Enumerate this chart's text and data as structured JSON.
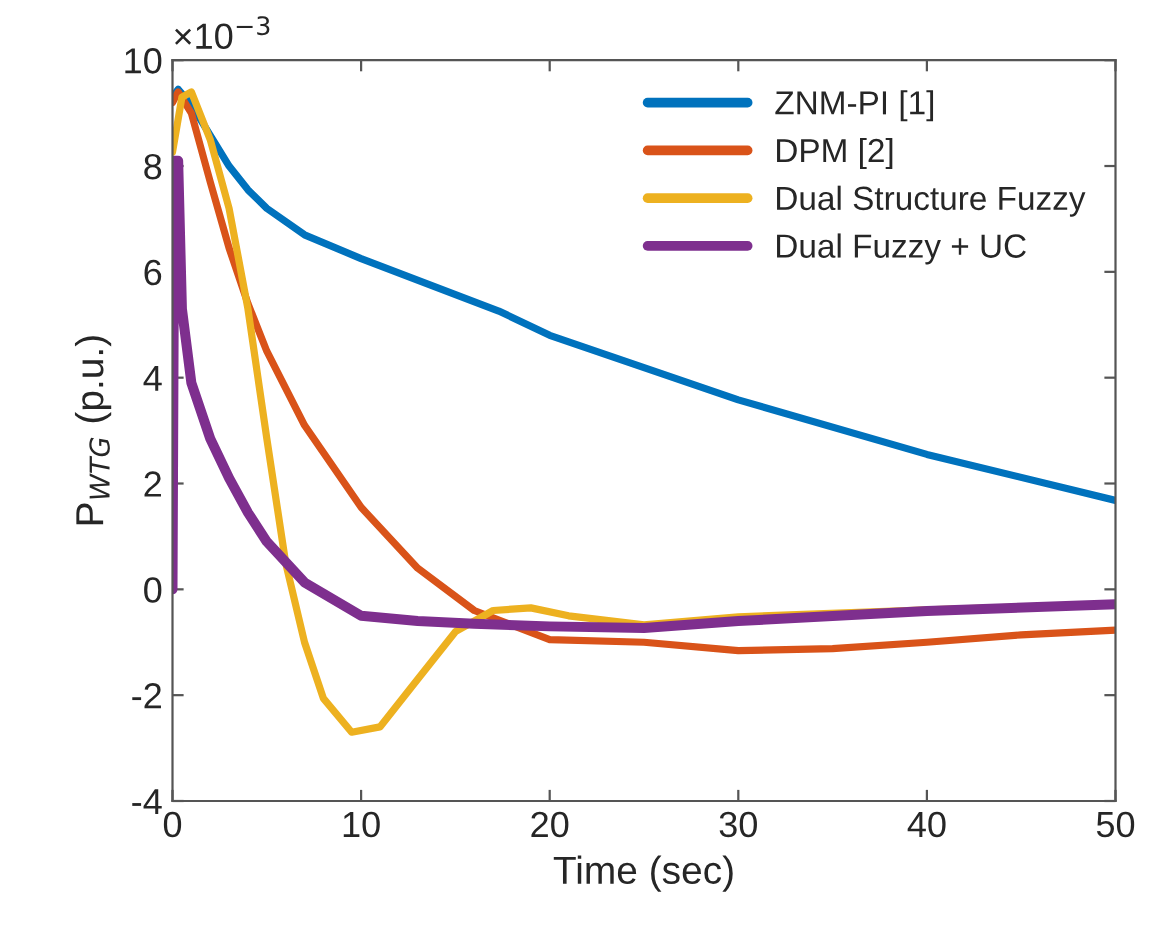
{
  "chart_data": {
    "type": "line",
    "xlabel": "Time (sec)",
    "ylabel": "P$_{WTG}$ (p.u.)",
    "annotations": [
      "×10$^{−3}$"
    ],
    "xlim": [
      0,
      50
    ],
    "xticks": [
      0,
      10,
      20,
      30,
      40,
      50
    ],
    "ylim": [
      -4,
      10
    ],
    "yticks": [
      -4,
      -2,
      0,
      2,
      4,
      6,
      8,
      10
    ],
    "grid": false,
    "legend": "top right",
    "marker": "none",
    "line_style": "solid",
    "series": [
      {
        "name": "ZNM-PI [1]",
        "color": "#0072bd",
        "x": [
          0,
          0.3,
          1,
          2,
          3,
          4,
          5,
          7,
          10,
          17.3,
          20,
          30,
          40,
          50
        ],
        "values": [
          9.3,
          9.45,
          9.16,
          8.58,
          8.0,
          7.55,
          7.2,
          6.7,
          6.25,
          5.26,
          4.8,
          3.58,
          2.55,
          1.68
        ]
      },
      {
        "name": "DPM [2]",
        "color": "#d95319",
        "x": [
          0,
          0.3,
          1,
          2,
          3,
          4,
          5,
          7,
          10,
          13,
          16,
          20,
          25,
          30,
          35,
          40,
          45,
          50
        ],
        "values": [
          9.2,
          9.4,
          9.0,
          7.7,
          6.45,
          5.4,
          4.5,
          3.1,
          1.55,
          0.4,
          -0.4,
          -0.95,
          -1.0,
          -1.16,
          -1.12,
          -1.0,
          -0.86,
          -0.77
        ]
      },
      {
        "name": "Dual Structure Fuzzy",
        "color": "#edb120",
        "x": [
          0,
          0.5,
          1,
          2,
          3,
          4,
          5,
          6,
          7,
          8,
          9.5,
          11,
          13,
          15,
          17,
          19,
          21,
          25,
          30,
          40,
          50
        ],
        "values": [
          8.26,
          9.3,
          9.4,
          8.5,
          7.2,
          5.3,
          2.85,
          0.5,
          -1.0,
          -2.06,
          -2.7,
          -2.6,
          -1.7,
          -0.8,
          -0.4,
          -0.35,
          -0.5,
          -0.67,
          -0.52,
          -0.39,
          -0.28
        ]
      },
      {
        "name": "Dual Fuzzy + UC",
        "color": "#7e2f8e",
        "x": [
          0,
          0.1,
          0.3,
          0.5,
          1,
          2,
          3,
          4,
          5,
          7,
          10,
          13,
          16,
          20,
          25,
          30,
          40,
          50
        ],
        "values": [
          0,
          8.1,
          8.1,
          5.3,
          3.9,
          2.85,
          2.1,
          1.45,
          0.9,
          0.13,
          -0.5,
          -0.6,
          -0.65,
          -0.7,
          -0.73,
          -0.6,
          -0.41,
          -0.28
        ]
      }
    ]
  }
}
